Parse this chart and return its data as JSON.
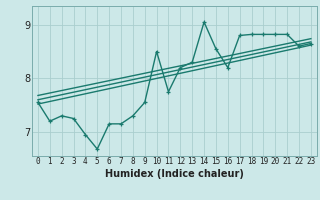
{
  "xlabel": "Humidex (Indice chaleur)",
  "bg_color": "#cce8e8",
  "line_color": "#1a7a6e",
  "grid_color": "#aacece",
  "xlim": [
    -0.5,
    23.5
  ],
  "ylim": [
    6.55,
    9.35
  ],
  "yticks": [
    7,
    8,
    9
  ],
  "xticks": [
    0,
    1,
    2,
    3,
    4,
    5,
    6,
    7,
    8,
    9,
    10,
    11,
    12,
    13,
    14,
    15,
    16,
    17,
    18,
    19,
    20,
    21,
    22,
    23
  ],
  "line1_x": [
    0,
    1,
    2,
    3,
    4,
    5,
    6,
    7,
    8,
    9,
    10,
    11,
    12,
    13,
    14,
    15,
    16,
    17,
    18,
    19,
    20,
    21,
    22,
    23
  ],
  "line1_y": [
    7.55,
    7.2,
    7.3,
    7.25,
    6.95,
    6.68,
    7.15,
    7.15,
    7.3,
    7.55,
    8.5,
    7.75,
    8.2,
    8.3,
    9.05,
    8.55,
    8.2,
    8.8,
    8.82,
    8.82,
    8.82,
    8.82,
    8.6,
    8.65
  ],
  "line2_x": [
    0,
    23
  ],
  "line2_y": [
    7.52,
    8.62
  ],
  "line3_x": [
    0,
    23
  ],
  "line3_y": [
    7.68,
    8.74
  ],
  "line4_x": [
    0,
    23
  ],
  "line4_y": [
    7.6,
    8.68
  ],
  "xlabel_fontsize": 7,
  "tick_fontsize": 5.5,
  "ytick_fontsize": 7
}
